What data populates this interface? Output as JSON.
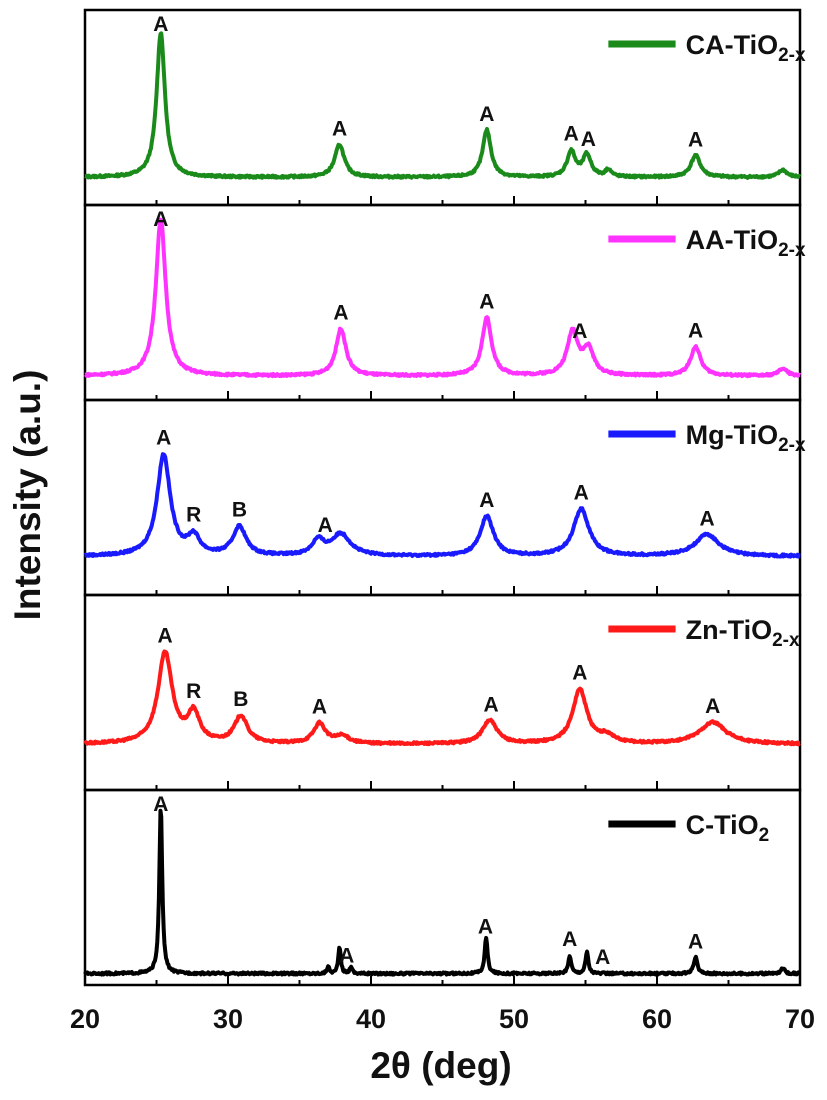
{
  "chart_data": {
    "type": "line",
    "layout": "stacked-panels",
    "xlabel": "2θ (deg)",
    "ylabel": "Intensity (a.u.)",
    "xlim": [
      20,
      70
    ],
    "xticks": [
      20,
      30,
      40,
      50,
      60,
      70
    ],
    "ylim": [
      0,
      1
    ],
    "grid": false,
    "legend_position": "top-right",
    "series": [
      {
        "name": "CA-TiO2-x",
        "name_main": "CA-TiO",
        "name_sub": "2-x",
        "color": "#1a8a1a",
        "baseline": 0.12,
        "peaks": [
          {
            "x": 25.3,
            "height": 0.8,
            "width": 0.35
          },
          {
            "x": 37.8,
            "height": 0.18,
            "width": 0.4
          },
          {
            "x": 48.1,
            "height": 0.26,
            "width": 0.35
          },
          {
            "x": 54.0,
            "height": 0.14,
            "width": 0.35
          },
          {
            "x": 55.1,
            "height": 0.12,
            "width": 0.35
          },
          {
            "x": 56.6,
            "height": 0.04,
            "width": 0.25
          },
          {
            "x": 62.7,
            "height": 0.12,
            "width": 0.4
          },
          {
            "x": 68.8,
            "height": 0.04,
            "width": 0.35
          }
        ],
        "labels": [
          {
            "x": 25.3,
            "text": "A"
          },
          {
            "x": 37.8,
            "text": "A"
          },
          {
            "x": 48.1,
            "text": "A"
          },
          {
            "x": 54.0,
            "text": "A"
          },
          {
            "x": 55.2,
            "text": "A"
          },
          {
            "x": 62.7,
            "text": "A"
          }
        ]
      },
      {
        "name": "AA-TiO2-x",
        "name_main": "AA-TiO",
        "name_sub": "2-x",
        "color": "#ff33ff",
        "baseline": 0.1,
        "peaks": [
          {
            "x": 25.3,
            "height": 0.86,
            "width": 0.42
          },
          {
            "x": 37.9,
            "height": 0.26,
            "width": 0.42
          },
          {
            "x": 48.1,
            "height": 0.32,
            "width": 0.4
          },
          {
            "x": 54.1,
            "height": 0.24,
            "width": 0.45
          },
          {
            "x": 55.2,
            "height": 0.14,
            "width": 0.45
          },
          {
            "x": 62.7,
            "height": 0.16,
            "width": 0.42
          },
          {
            "x": 68.8,
            "height": 0.04,
            "width": 0.35
          }
        ],
        "labels": [
          {
            "x": 25.3,
            "text": "A"
          },
          {
            "x": 37.9,
            "text": "A"
          },
          {
            "x": 48.1,
            "text": "A"
          },
          {
            "x": 54.6,
            "text": "A"
          },
          {
            "x": 62.7,
            "text": "A"
          }
        ]
      },
      {
        "name": "Mg-TiO2-x",
        "name_main": "Mg-TiO",
        "name_sub": "2-x",
        "color": "#1a1aff",
        "baseline": 0.18,
        "peaks": [
          {
            "x": 25.5,
            "height": 0.56,
            "width": 0.55
          },
          {
            "x": 27.6,
            "height": 0.1,
            "width": 0.5
          },
          {
            "x": 30.8,
            "height": 0.16,
            "width": 0.55
          },
          {
            "x": 36.3,
            "height": 0.08,
            "width": 0.5
          },
          {
            "x": 37.9,
            "height": 0.12,
            "width": 0.8
          },
          {
            "x": 48.1,
            "height": 0.22,
            "width": 0.55
          },
          {
            "x": 54.7,
            "height": 0.26,
            "width": 0.65
          },
          {
            "x": 63.5,
            "height": 0.12,
            "width": 1.0
          }
        ],
        "labels": [
          {
            "x": 25.5,
            "text": "A"
          },
          {
            "x": 27.6,
            "text": "R"
          },
          {
            "x": 30.8,
            "text": "B"
          },
          {
            "x": 36.8,
            "text": "A"
          },
          {
            "x": 48.1,
            "text": "A"
          },
          {
            "x": 54.7,
            "text": "A"
          },
          {
            "x": 63.5,
            "text": "A"
          }
        ]
      },
      {
        "name": "Zn-TiO2-x",
        "name_main": "Zn-TiO",
        "name_sub": "2-x",
        "color": "#ff1a1a",
        "baseline": 0.22,
        "peaks": [
          {
            "x": 25.6,
            "height": 0.5,
            "width": 0.6
          },
          {
            "x": 27.6,
            "height": 0.16,
            "width": 0.5
          },
          {
            "x": 30.9,
            "height": 0.15,
            "width": 0.55
          },
          {
            "x": 36.4,
            "height": 0.11,
            "width": 0.5
          },
          {
            "x": 38.0,
            "height": 0.04,
            "width": 0.6
          },
          {
            "x": 48.3,
            "height": 0.13,
            "width": 0.6
          },
          {
            "x": 54.6,
            "height": 0.3,
            "width": 0.6
          },
          {
            "x": 56.5,
            "height": 0.04,
            "width": 0.6
          },
          {
            "x": 63.9,
            "height": 0.12,
            "width": 1.1
          }
        ],
        "labels": [
          {
            "x": 25.6,
            "text": "A"
          },
          {
            "x": 27.6,
            "text": "R"
          },
          {
            "x": 30.9,
            "text": "B"
          },
          {
            "x": 36.4,
            "text": "A"
          },
          {
            "x": 48.4,
            "text": "A"
          },
          {
            "x": 54.6,
            "text": "A"
          },
          {
            "x": 63.9,
            "text": "A"
          }
        ]
      },
      {
        "name": "C-TiO2",
        "name_main": "C-TiO",
        "name_sub": "2",
        "color": "#000000",
        "baseline": 0.03,
        "peaks": [
          {
            "x": 25.3,
            "height": 0.93,
            "width": 0.12
          },
          {
            "x": 37.0,
            "height": 0.04,
            "width": 0.1
          },
          {
            "x": 37.8,
            "height": 0.15,
            "width": 0.1
          },
          {
            "x": 38.6,
            "height": 0.04,
            "width": 0.1
          },
          {
            "x": 48.05,
            "height": 0.2,
            "width": 0.12
          },
          {
            "x": 53.9,
            "height": 0.1,
            "width": 0.12
          },
          {
            "x": 55.1,
            "height": 0.12,
            "width": 0.12
          },
          {
            "x": 62.7,
            "height": 0.09,
            "width": 0.15
          },
          {
            "x": 68.8,
            "height": 0.03,
            "width": 0.15
          }
        ],
        "labels": [
          {
            "x": 25.3,
            "text": "A"
          },
          {
            "x": 38.3,
            "text": "A"
          },
          {
            "x": 48.0,
            "text": "A"
          },
          {
            "x": 53.9,
            "text": "A"
          },
          {
            "x": 56.2,
            "text": "A"
          },
          {
            "x": 62.7,
            "text": "A"
          }
        ]
      }
    ]
  }
}
